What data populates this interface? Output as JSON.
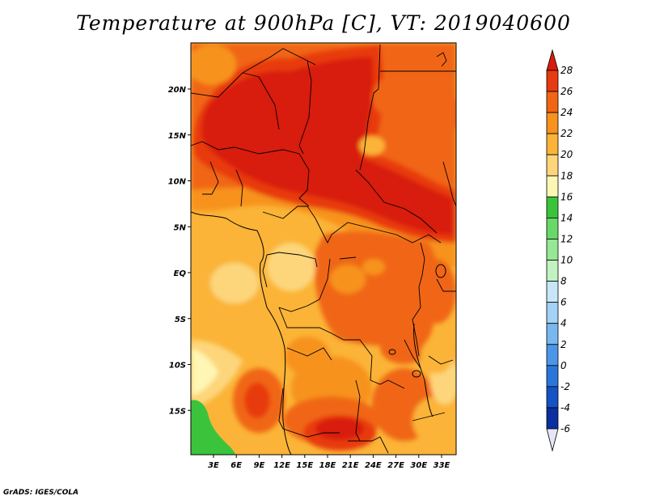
{
  "title": "Temperature at 900hPa [C], VT: 2019040600",
  "credit": "GrADS: IGES/COLA",
  "map": {
    "lat_ticks": [
      {
        "label": "20N",
        "value": 20
      },
      {
        "label": "15N",
        "value": 15
      },
      {
        "label": "10N",
        "value": 10
      },
      {
        "label": "5N",
        "value": 5
      },
      {
        "label": "EQ",
        "value": 0
      },
      {
        "label": "5S",
        "value": -5
      },
      {
        "label": "10S",
        "value": -10
      },
      {
        "label": "15S",
        "value": -15
      }
    ],
    "lon_ticks": [
      {
        "label": "3E",
        "value": 3
      },
      {
        "label": "6E",
        "value": 6
      },
      {
        "label": "9E",
        "value": 9
      },
      {
        "label": "12E",
        "value": 12
      },
      {
        "label": "15E",
        "value": 15
      },
      {
        "label": "18E",
        "value": 18
      },
      {
        "label": "21E",
        "value": 21
      },
      {
        "label": "24E",
        "value": 24
      },
      {
        "label": "27E",
        "value": 27
      },
      {
        "label": "30E",
        "value": 30
      },
      {
        "label": "33E",
        "value": 33
      }
    ]
  },
  "colorbar": {
    "labels": [
      "28",
      "26",
      "24",
      "22",
      "20",
      "18",
      "16",
      "14",
      "12",
      "10",
      "8",
      "6",
      "4",
      "2",
      "0",
      "-2",
      "-4",
      "-6"
    ],
    "colors": [
      "#d81c0c",
      "#e83a10",
      "#f06614",
      "#f7931c",
      "#fbb437",
      "#fdd67c",
      "#fef6b4",
      "#3bc43b",
      "#68d868",
      "#96e896",
      "#c2f2c2",
      "#c8e6f8",
      "#a2d2f5",
      "#78b8f0",
      "#4c96e8",
      "#2a76db",
      "#1552c4",
      "#0c2e9e",
      "#081c70",
      "#e6e6fa"
    ]
  }
}
